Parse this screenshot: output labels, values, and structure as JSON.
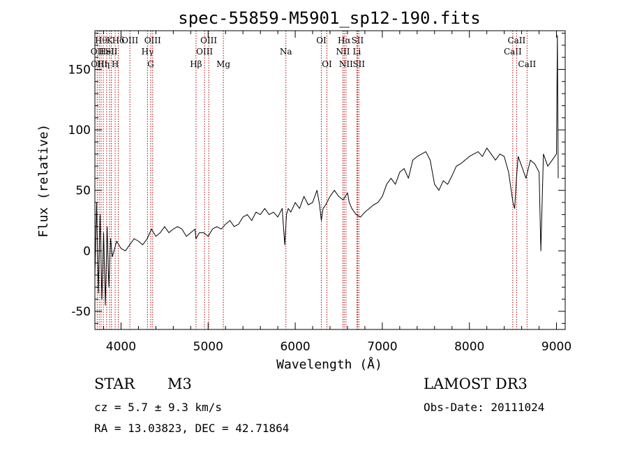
{
  "chart_data": {
    "type": "line",
    "title": "spec-55859-M5901_sp12-190.fits",
    "xlabel": "Wavelength (Å)",
    "ylabel": "Flux (relative)",
    "xlim": [
      3700,
      9100
    ],
    "ylim": [
      -65,
      182
    ],
    "xticks": [
      4000,
      5000,
      6000,
      7000,
      8000,
      9000
    ],
    "yticks": [
      -50,
      0,
      50,
      100,
      150
    ],
    "grid": false,
    "series": [
      {
        "name": "spectrum",
        "color": "#000000",
        "x": [
          3700,
          3720,
          3740,
          3760,
          3780,
          3800,
          3820,
          3840,
          3860,
          3880,
          3900,
          3950,
          4000,
          4050,
          4100,
          4150,
          4200,
          4250,
          4300,
          4350,
          4400,
          4450,
          4500,
          4550,
          4600,
          4650,
          4700,
          4750,
          4800,
          4850,
          4860,
          4900,
          4950,
          5000,
          5050,
          5100,
          5150,
          5200,
          5250,
          5300,
          5350,
          5400,
          5450,
          5500,
          5550,
          5600,
          5650,
          5700,
          5750,
          5800,
          5850,
          5880,
          5900,
          5920,
          5950,
          6000,
          6050,
          6100,
          6150,
          6200,
          6250,
          6280,
          6300,
          6320,
          6350,
          6400,
          6450,
          6500,
          6550,
          6600,
          6620,
          6650,
          6700,
          6750,
          6800,
          6850,
          6900,
          6950,
          7000,
          7050,
          7100,
          7150,
          7200,
          7250,
          7300,
          7350,
          7400,
          7450,
          7500,
          7550,
          7600,
          7650,
          7700,
          7750,
          7800,
          7850,
          7900,
          7950,
          8000,
          8050,
          8100,
          8150,
          8200,
          8250,
          8300,
          8350,
          8400,
          8450,
          8500,
          8520,
          8540,
          8560,
          8600,
          8650,
          8700,
          8750,
          8800,
          8820,
          8850,
          8900,
          8950,
          9000,
          9010,
          9020
        ],
        "values": [
          -20,
          40,
          -35,
          30,
          -40,
          15,
          -45,
          20,
          -30,
          10,
          -5,
          8,
          2,
          0,
          5,
          10,
          8,
          5,
          10,
          18,
          12,
          15,
          20,
          15,
          18,
          20,
          18,
          12,
          15,
          18,
          10,
          15,
          15,
          12,
          18,
          20,
          18,
          22,
          25,
          20,
          22,
          28,
          30,
          25,
          32,
          30,
          35,
          30,
          32,
          28,
          35,
          5,
          30,
          35,
          32,
          40,
          35,
          45,
          38,
          40,
          50,
          38,
          25,
          35,
          38,
          45,
          50,
          45,
          42,
          48,
          40,
          35,
          30,
          28,
          32,
          35,
          38,
          40,
          45,
          55,
          60,
          55,
          65,
          68,
          60,
          75,
          78,
          80,
          82,
          75,
          55,
          50,
          58,
          55,
          62,
          70,
          72,
          75,
          78,
          80,
          82,
          78,
          85,
          80,
          75,
          80,
          78,
          65,
          40,
          35,
          60,
          78,
          70,
          60,
          75,
          72,
          65,
          0,
          80,
          70,
          75,
          80,
          178,
          60
        ]
      }
    ],
    "lines": [
      {
        "wavelength": 3727,
        "label": "OII",
        "row": 2
      },
      {
        "wavelength": 3750,
        "label": "OIII",
        "row": 3
      },
      {
        "wavelength": 3771,
        "label": "Hθ",
        "row": 1
      },
      {
        "wavelength": 3797,
        "label": "Hη",
        "row": 3
      },
      {
        "wavelength": 3835,
        "label": "HeI",
        "row": 2
      },
      {
        "wavelength": 3869,
        "label": "K",
        "row": 1
      },
      {
        "wavelength": 3889,
        "label": "SII",
        "row": 2
      },
      {
        "wavelength": 3933,
        "label": "H",
        "row": 3
      },
      {
        "wavelength": 3968,
        "label": "Hδ",
        "row": 1
      },
      {
        "wavelength": 4102,
        "label": "OIII",
        "row": 1
      },
      {
        "wavelength": 4304,
        "label": "Hγ",
        "row": 2
      },
      {
        "wavelength": 4341,
        "label": "G",
        "row": 3
      },
      {
        "wavelength": 4363,
        "label": "OIII",
        "row": 1
      },
      {
        "wavelength": 4861,
        "label": "Hβ",
        "row": 3
      },
      {
        "wavelength": 4959,
        "label": "OIII",
        "row": 2
      },
      {
        "wavelength": 5007,
        "label": "OIII",
        "row": 1
      },
      {
        "wavelength": 5175,
        "label": "Mg",
        "row": 3
      },
      {
        "wavelength": 5893,
        "label": "Na",
        "row": 2
      },
      {
        "wavelength": 6300,
        "label": "OI",
        "row": 1
      },
      {
        "wavelength": 6364,
        "label": "OI",
        "row": 3
      },
      {
        "wavelength": 6548,
        "label": "NII",
        "row": 2
      },
      {
        "wavelength": 6563,
        "label": "Hα",
        "row": 1
      },
      {
        "wavelength": 6583,
        "label": "NII",
        "row": 3
      },
      {
        "wavelength": 6708,
        "label": "Li",
        "row": 2
      },
      {
        "wavelength": 6716,
        "label": "SII",
        "row": 1
      },
      {
        "wavelength": 6731,
        "label": "SII",
        "row": 3
      },
      {
        "wavelength": 8498,
        "label": "CaII",
        "row": 2
      },
      {
        "wavelength": 8542,
        "label": "CaII",
        "row": 1
      },
      {
        "wavelength": 8662,
        "label": "CaII",
        "row": 3
      }
    ],
    "line_color": "#b00000"
  },
  "info": {
    "object_type": "STAR",
    "subclass": "M3",
    "survey": "LAMOST DR3",
    "redshift": "cz = 5.7 ± 9.3 km/s",
    "obs_date": "Obs-Date: 20111024",
    "coords": "RA =  13.03823, DEC =  42.71864"
  }
}
